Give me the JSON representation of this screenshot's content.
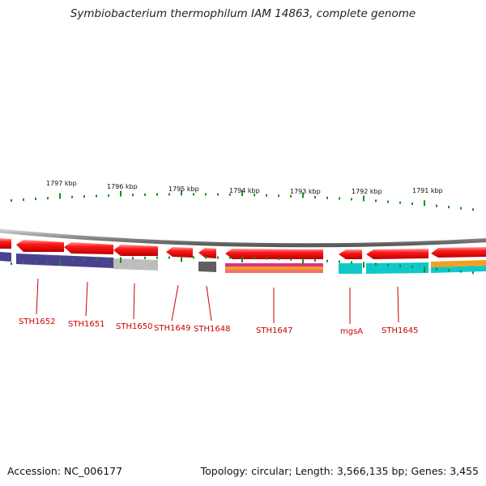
{
  "title": "Symbiobacterium thermophilum IAM 14863, complete genome",
  "footer": {
    "accession": "Accession: NC_006177",
    "summary": "Topology: circular; Length: 3,566,135 bp; Genes: 3,455"
  },
  "colors": {
    "backbone": "#8f8f8f",
    "gene_arrow": "#ff0000",
    "tick": "#1a8f1a",
    "gene_label": "#cc0000",
    "scale_label": "#111111",
    "cog_purple": "#4a4190",
    "cog_grey": "#bdbdbd",
    "cog_darkgrey": "#5f5f5f",
    "cog_pink": "#e0308a",
    "cog_orange": "#f0a020",
    "cog_cyan": "#10c8c8"
  },
  "scale_labels": [
    "1797 kbp",
    "1796 kbp",
    "1795 kbp",
    "1794 kbp",
    "1793 kbp",
    "1792 kbp",
    "1791 kbp"
  ],
  "gene_labels": [
    "STH1652",
    "STH1651",
    "STH1650",
    "STH1649",
    "STH1648",
    "STH1647",
    "mgsA",
    "STH1645"
  ]
}
